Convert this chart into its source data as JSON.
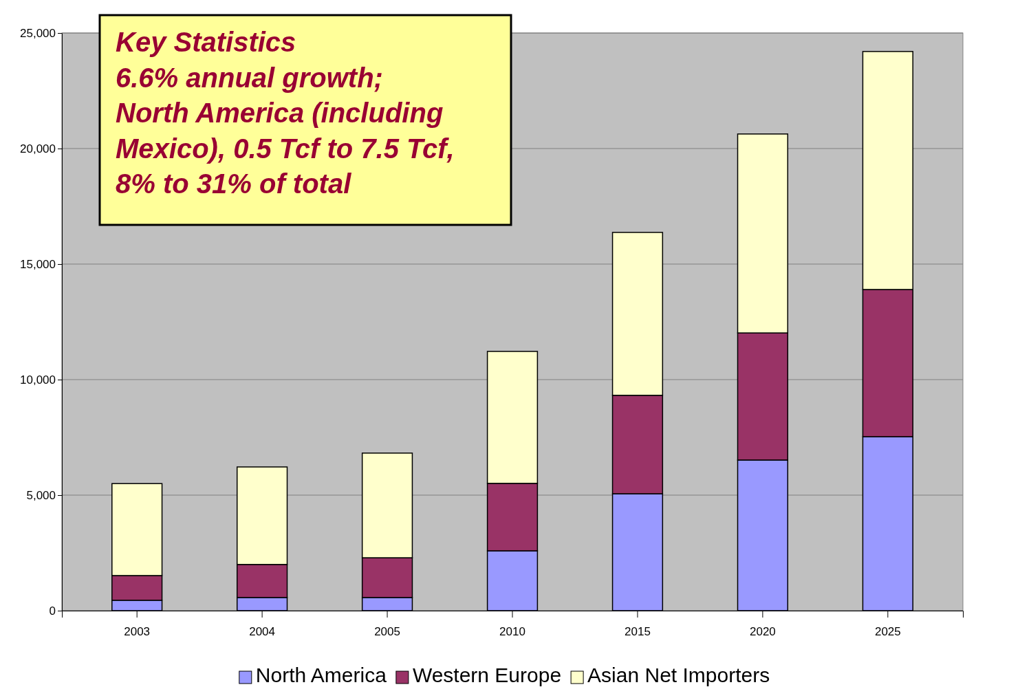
{
  "chart_data": {
    "type": "bar",
    "stacked": true,
    "categories": [
      "2003",
      "2004",
      "2005",
      "2010",
      "2015",
      "2020",
      "2025"
    ],
    "series": [
      {
        "name": "North America",
        "color": "#9999ff",
        "values": [
          450,
          570,
          570,
          2590,
          5060,
          6520,
          7530
        ]
      },
      {
        "name": "Western Europe",
        "color": "#993366",
        "values": [
          1070,
          1430,
          1720,
          2920,
          4260,
          5500,
          6370
        ]
      },
      {
        "name": "Asian Net Importers",
        "color": "#ffffcc",
        "values": [
          3980,
          4220,
          4530,
          5710,
          7050,
          8610,
          10300
        ]
      }
    ],
    "ylim": [
      0,
      25000
    ],
    "yticks": [
      {
        "value": 0,
        "label": "0"
      },
      {
        "value": 5000,
        "label": "5,000"
      },
      {
        "value": 10000,
        "label": "10,000"
      },
      {
        "value": 15000,
        "label": "15,000"
      },
      {
        "value": 20000,
        "label": "20,000"
      },
      {
        "value": 25000,
        "label": "25,000"
      }
    ],
    "grid": "y",
    "legend": "bottom",
    "annotations": [
      "Key Statistics\n6.6% annual growth;\nNorth America (including\nMexico), 0.5 Tcf to 7.5 Tcf,\n8% to 31% of total"
    ]
  }
}
